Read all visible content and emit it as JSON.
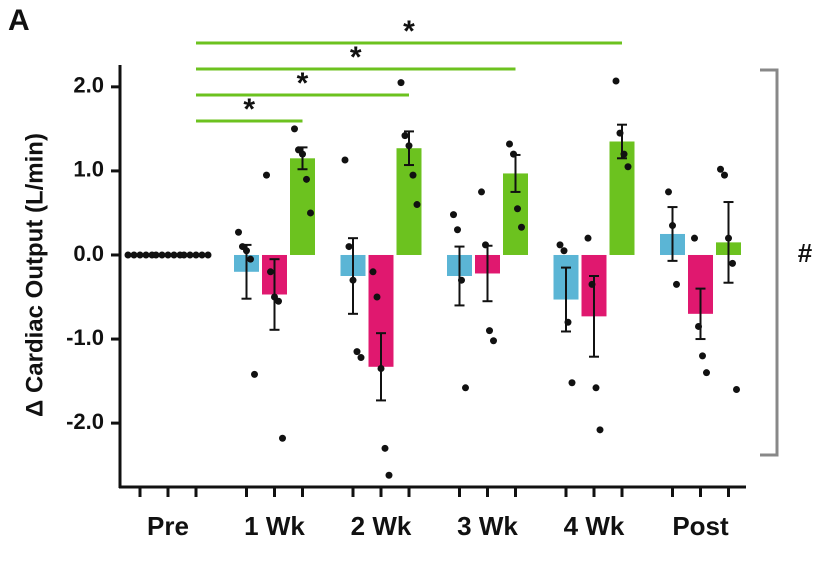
{
  "chart_data": {
    "type": "bar",
    "panel": "A",
    "ylabel": "Δ Cardiac Output (L/min)",
    "categories": [
      "Pre",
      "1 Wk",
      "2 Wk",
      "3 Wk",
      "4 Wk",
      "Post"
    ],
    "ylim": [
      -2.76,
      2.26
    ],
    "yticks": [
      {
        "value": -2,
        "label": "-2.0"
      },
      {
        "value": -1,
        "label": "-1.0"
      },
      {
        "value": 0,
        "label": "0.0"
      },
      {
        "value": 1,
        "label": "1.0"
      },
      {
        "value": 2,
        "label": "2.0"
      }
    ],
    "series": [
      {
        "color": "#5bb5d5",
        "values": [
          0,
          -0.2,
          -0.25,
          -0.25,
          -0.53,
          0.25
        ],
        "errors": [
          0,
          0.32,
          0.45,
          0.35,
          0.38,
          0.32
        ],
        "points": [
          [
            0,
            0,
            0,
            0,
            0
          ],
          [
            0.27,
            0.1,
            0.05,
            -0.05,
            -1.42
          ],
          [
            1.13,
            0.1,
            -0.3,
            -1.15,
            -1.22
          ],
          [
            0.48,
            0.3,
            -0.3,
            -1.58
          ],
          [
            0.12,
            0.05,
            -0.8,
            -1.52
          ],
          [
            0.75,
            0.35,
            -0.35
          ]
        ]
      },
      {
        "color": "#e0186f",
        "values": [
          0,
          -0.47,
          -1.33,
          -0.22,
          -0.73,
          -0.7
        ],
        "errors": [
          0,
          0.42,
          0.4,
          0.33,
          0.48,
          0.3
        ],
        "points": [
          [
            0,
            0,
            0,
            0,
            0
          ],
          [
            0.95,
            -0.2,
            -0.5,
            -0.55,
            -2.18
          ],
          [
            -0.2,
            -0.5,
            -1.35,
            -2.3,
            -2.62
          ],
          [
            0.75,
            0.12,
            -0.9,
            -1.02
          ],
          [
            0.2,
            -0.35,
            -1.58,
            -2.08
          ],
          [
            0.2,
            -0.85,
            -1.2,
            -1.4
          ]
        ]
      },
      {
        "color": "#6cc21f",
        "values": [
          0,
          1.15,
          1.27,
          0.97,
          1.35,
          0.15
        ],
        "errors": [
          0,
          0.13,
          0.2,
          0.22,
          0.2,
          0.48
        ],
        "points": [
          [
            0,
            0,
            0,
            0,
            0
          ],
          [
            1.5,
            1.25,
            1.2,
            0.9,
            0.5
          ],
          [
            2.05,
            1.42,
            1.3,
            0.95,
            0.6
          ],
          [
            1.32,
            1.2,
            0.55,
            0.33
          ],
          [
            2.07,
            1.45,
            1.2,
            1.05
          ],
          [
            1.02,
            0.95,
            0.2,
            -0.1,
            -1.6
          ]
        ]
      }
    ],
    "comparisons": [
      {
        "from": "Pre",
        "to": "4 Wk",
        "label": "*"
      },
      {
        "from": "Pre",
        "to": "3 Wk",
        "label": "*"
      },
      {
        "from": "Pre",
        "to": "2 Wk",
        "label": "*"
      },
      {
        "from": "Pre",
        "to": "1 Wk",
        "label": "*"
      }
    ],
    "bracket_label": "#"
  }
}
